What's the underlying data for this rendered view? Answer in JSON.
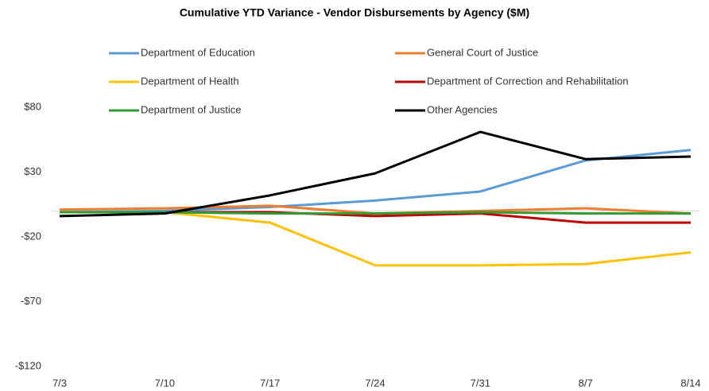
{
  "chart_data": {
    "type": "line",
    "title": "Cumulative YTD Variance - Vendor Disbursements by Agency ($M)",
    "categories": [
      "7/3",
      "7/10",
      "7/17",
      "7/24",
      "7/31",
      "8/7",
      "8/14"
    ],
    "series": [
      {
        "name": "Department of Education",
        "color": "#5b9bd5",
        "values": [
          -1,
          0,
          3,
          8,
          15,
          39,
          47
        ]
      },
      {
        "name": "General Court of Justice",
        "color": "#ed7d31",
        "values": [
          1,
          2,
          4,
          -2,
          0,
          2,
          -2
        ]
      },
      {
        "name": "Department of Health",
        "color": "#ffc000",
        "values": [
          -1,
          -1,
          -9,
          -42,
          -42,
          -41,
          -32
        ]
      },
      {
        "name": "Department of Correction and Rehabilitation",
        "color": "#c00000",
        "values": [
          -1,
          -1,
          -1,
          -4,
          -2,
          -9,
          -9
        ]
      },
      {
        "name": "Department of Justice",
        "color": "#339933",
        "values": [
          -1,
          -1,
          -2,
          -2,
          -1,
          -2,
          -2
        ]
      },
      {
        "name": "Other Agencies",
        "color": "#000000",
        "values": [
          -4,
          -2,
          12,
          29,
          61,
          40,
          42
        ]
      }
    ],
    "ylim": [
      -120,
      80
    ],
    "yticks": [
      {
        "value": -120,
        "label": "-$120"
      },
      {
        "value": -70,
        "label": "-$70"
      },
      {
        "value": -20,
        "label": "-$20"
      },
      {
        "value": 30,
        "label": "$30"
      },
      {
        "value": 80,
        "label": "$80"
      }
    ],
    "grid": false,
    "legend": "top"
  }
}
